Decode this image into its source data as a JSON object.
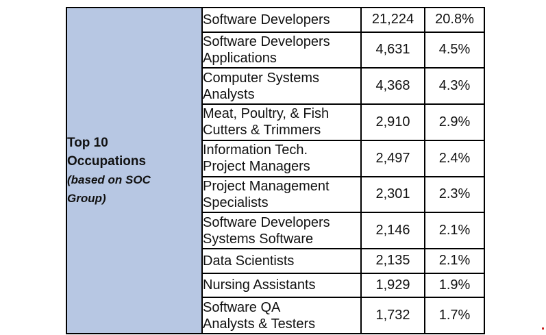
{
  "table": {
    "header": {
      "title_line1": "Top 10",
      "title_line2": "Occupations",
      "subtitle_line1": "(based on SOC",
      "subtitle_line2": "Group)"
    },
    "rows": [
      {
        "name_line1": "Software Developers",
        "name_line2": "",
        "count": "21,224",
        "percent": "20.8%"
      },
      {
        "name_line1": "Software Developers",
        "name_line2": "Applications",
        "count": "4,631",
        "percent": "4.5%"
      },
      {
        "name_line1": "Computer Systems",
        "name_line2": "Analysts",
        "count": "4,368",
        "percent": "4.3%"
      },
      {
        "name_line1": "Meat, Poultry, & Fish",
        "name_line2": "Cutters & Trimmers",
        "count": "2,910",
        "percent": "2.9%"
      },
      {
        "name_line1": "Information Tech.",
        "name_line2": "Project Managers",
        "count": "2,497",
        "percent": "2.4%"
      },
      {
        "name_line1": "Project Management",
        "name_line2": "Specialists",
        "count": "2,301",
        "percent": "2.3%"
      },
      {
        "name_line1": "Software Developers",
        "name_line2": "Systems Software",
        "count": "2,146",
        "percent": "2.1%"
      },
      {
        "name_line1": "Data Scientists",
        "name_line2": "",
        "count": "2,135",
        "percent": "2.1%"
      },
      {
        "name_line1": "Nursing Assistants",
        "name_line2": "",
        "count": "1,929",
        "percent": "1.9%"
      },
      {
        "name_line1": "Software QA",
        "name_line2": "Analysts & Testers",
        "count": "1,732",
        "percent": "1.7%"
      }
    ]
  },
  "colors": {
    "header_background": "#b7c7e3",
    "border": "#000000"
  }
}
